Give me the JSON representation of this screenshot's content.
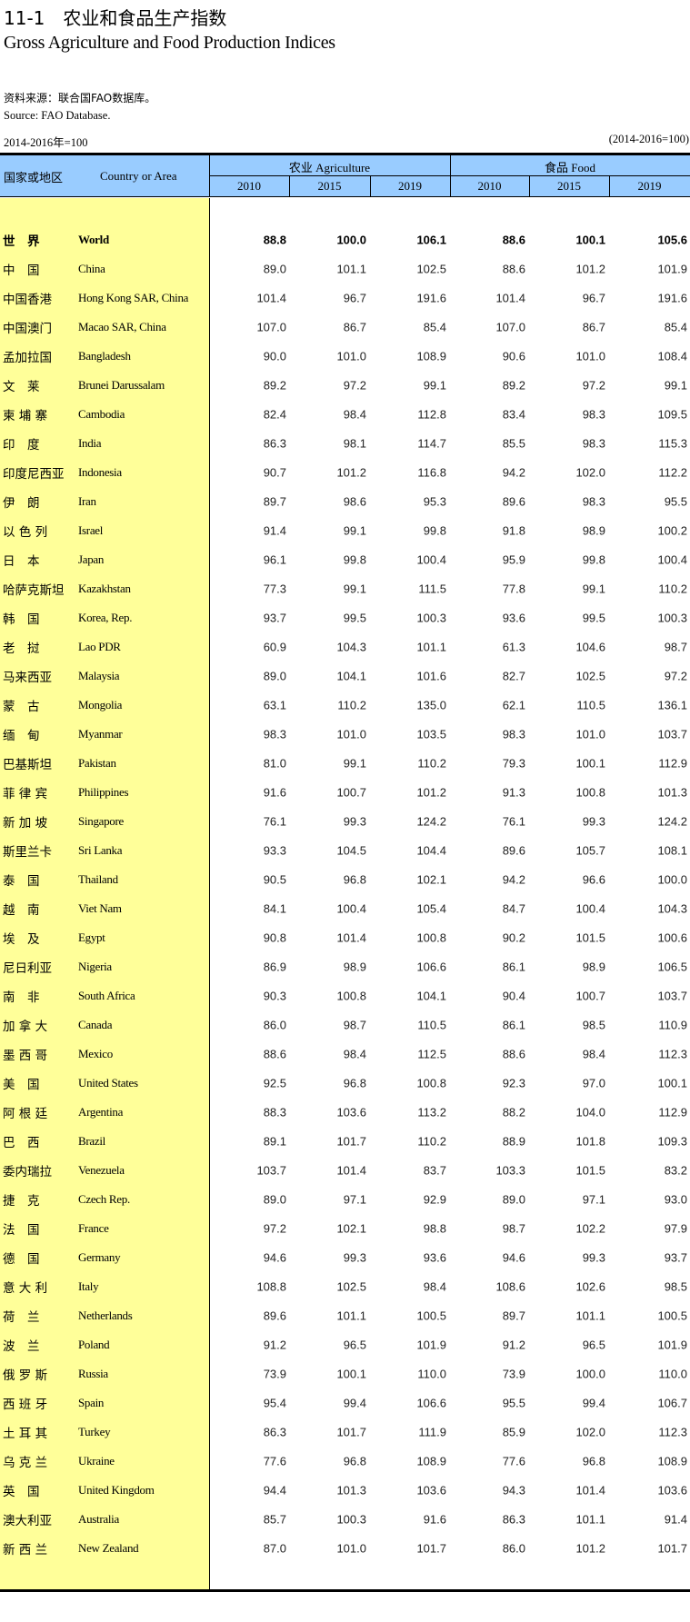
{
  "title": {
    "cn": "11-1　农业和食品生产指数",
    "en": "Gross Agriculture and Food Production Indices"
  },
  "source": {
    "cn": "资料来源：联合国FAO数据库。",
    "en": "Source: FAO Database."
  },
  "base": {
    "cn": "2014-2016年=100",
    "en": "(2014-2016=100)"
  },
  "header": {
    "country_cn": "国家或地区",
    "country_en": "Country or Area",
    "agriculture": "农业  Agriculture",
    "food": "食品  Food",
    "years": [
      "2010",
      "2015",
      "2019",
      "2010",
      "2015",
      "2019"
    ]
  },
  "colors": {
    "header_bg": "#99ccff",
    "name_column_bg": "#ffff99"
  },
  "rows": [
    {
      "cn": "世　界",
      "en": "World",
      "values": [
        "88.8",
        "100.0",
        "106.1",
        "88.6",
        "100.1",
        "105.6"
      ],
      "bold": true
    },
    {
      "cn": "中　国",
      "en": "China",
      "values": [
        "89.0",
        "101.1",
        "102.5",
        "88.6",
        "101.2",
        "101.9"
      ]
    },
    {
      "cn": "中国香港",
      "en": "Hong Kong SAR, China",
      "values": [
        "101.4",
        "96.7",
        "191.6",
        "101.4",
        "96.7",
        "191.6"
      ]
    },
    {
      "cn": "中国澳门",
      "en": "Macao SAR, China",
      "values": [
        "107.0",
        "86.7",
        "85.4",
        "107.0",
        "86.7",
        "85.4"
      ]
    },
    {
      "cn": "孟加拉国",
      "en": "Bangladesh",
      "values": [
        "90.0",
        "101.0",
        "108.9",
        "90.6",
        "101.0",
        "108.4"
      ]
    },
    {
      "cn": "文　莱",
      "en": "Brunei Darussalam",
      "values": [
        "89.2",
        "97.2",
        "99.1",
        "89.2",
        "97.2",
        "99.1"
      ]
    },
    {
      "cn": "柬 埔 寨",
      "en": "Cambodia",
      "values": [
        "82.4",
        "98.4",
        "112.8",
        "83.4",
        "98.3",
        "109.5"
      ]
    },
    {
      "cn": "印　度",
      "en": "India",
      "values": [
        "86.3",
        "98.1",
        "114.7",
        "85.5",
        "98.3",
        "115.3"
      ]
    },
    {
      "cn": "印度尼西亚",
      "en": "Indonesia",
      "values": [
        "90.7",
        "101.2",
        "116.8",
        "94.2",
        "102.0",
        "112.2"
      ]
    },
    {
      "cn": "伊　朗",
      "en": "Iran",
      "values": [
        "89.7",
        "98.6",
        "95.3",
        "89.6",
        "98.3",
        "95.5"
      ]
    },
    {
      "cn": "以 色 列",
      "en": "Israel",
      "values": [
        "91.4",
        "99.1",
        "99.8",
        "91.8",
        "98.9",
        "100.2"
      ]
    },
    {
      "cn": "日　本",
      "en": "Japan",
      "values": [
        "96.1",
        "99.8",
        "100.4",
        "95.9",
        "99.8",
        "100.4"
      ]
    },
    {
      "cn": "哈萨克斯坦",
      "en": "Kazakhstan",
      "values": [
        "77.3",
        "99.1",
        "111.5",
        "77.8",
        "99.1",
        "110.2"
      ]
    },
    {
      "cn": "韩　国",
      "en": "Korea, Rep.",
      "values": [
        "93.7",
        "99.5",
        "100.3",
        "93.6",
        "99.5",
        "100.3"
      ]
    },
    {
      "cn": "老　挝",
      "en": "Lao PDR",
      "values": [
        "60.9",
        "104.3",
        "101.1",
        "61.3",
        "104.6",
        "98.7"
      ]
    },
    {
      "cn": "马来西亚",
      "en": "Malaysia",
      "values": [
        "89.0",
        "104.1",
        "101.6",
        "82.7",
        "102.5",
        "97.2"
      ]
    },
    {
      "cn": "蒙　古",
      "en": "Mongolia",
      "values": [
        "63.1",
        "110.2",
        "135.0",
        "62.1",
        "110.5",
        "136.1"
      ]
    },
    {
      "cn": "缅　甸",
      "en": "Myanmar",
      "values": [
        "98.3",
        "101.0",
        "103.5",
        "98.3",
        "101.0",
        "103.7"
      ]
    },
    {
      "cn": "巴基斯坦",
      "en": "Pakistan",
      "values": [
        "81.0",
        "99.1",
        "110.2",
        "79.3",
        "100.1",
        "112.9"
      ]
    },
    {
      "cn": "菲 律 宾",
      "en": "Philippines",
      "values": [
        "91.6",
        "100.7",
        "101.2",
        "91.3",
        "100.8",
        "101.3"
      ]
    },
    {
      "cn": "新 加 坡",
      "en": "Singapore",
      "values": [
        "76.1",
        "99.3",
        "124.2",
        "76.1",
        "99.3",
        "124.2"
      ]
    },
    {
      "cn": "斯里兰卡",
      "en": "Sri Lanka",
      "values": [
        "93.3",
        "104.5",
        "104.4",
        "89.6",
        "105.7",
        "108.1"
      ]
    },
    {
      "cn": "泰　国",
      "en": "Thailand",
      "values": [
        "90.5",
        "96.8",
        "102.1",
        "94.2",
        "96.6",
        "100.0"
      ]
    },
    {
      "cn": "越　南",
      "en": "Viet Nam",
      "values": [
        "84.1",
        "100.4",
        "105.4",
        "84.7",
        "100.4",
        "104.3"
      ]
    },
    {
      "cn": "埃　及",
      "en": "Egypt",
      "values": [
        "90.8",
        "101.4",
        "100.8",
        "90.2",
        "101.5",
        "100.6"
      ]
    },
    {
      "cn": "尼日利亚",
      "en": "Nigeria",
      "values": [
        "86.9",
        "98.9",
        "106.6",
        "86.1",
        "98.9",
        "106.5"
      ]
    },
    {
      "cn": "南　非",
      "en": "South Africa",
      "values": [
        "90.3",
        "100.8",
        "104.1",
        "90.4",
        "100.7",
        "103.7"
      ]
    },
    {
      "cn": "加 拿 大",
      "en": "Canada",
      "values": [
        "86.0",
        "98.7",
        "110.5",
        "86.1",
        "98.5",
        "110.9"
      ]
    },
    {
      "cn": "墨 西 哥",
      "en": "Mexico",
      "values": [
        "88.6",
        "98.4",
        "112.5",
        "88.6",
        "98.4",
        "112.3"
      ]
    },
    {
      "cn": "美　国",
      "en": "United States",
      "values": [
        "92.5",
        "96.8",
        "100.8",
        "92.3",
        "97.0",
        "100.1"
      ]
    },
    {
      "cn": "阿 根 廷",
      "en": "Argentina",
      "values": [
        "88.3",
        "103.6",
        "113.2",
        "88.2",
        "104.0",
        "112.9"
      ]
    },
    {
      "cn": "巴　西",
      "en": "Brazil",
      "values": [
        "89.1",
        "101.7",
        "110.2",
        "88.9",
        "101.8",
        "109.3"
      ]
    },
    {
      "cn": "委内瑞拉",
      "en": "Venezuela",
      "values": [
        "103.7",
        "101.4",
        "83.7",
        "103.3",
        "101.5",
        "83.2"
      ]
    },
    {
      "cn": "捷　克",
      "en": "Czech Rep.",
      "values": [
        "89.0",
        "97.1",
        "92.9",
        "89.0",
        "97.1",
        "93.0"
      ]
    },
    {
      "cn": "法　国",
      "en": "France",
      "values": [
        "97.2",
        "102.1",
        "98.8",
        "98.7",
        "102.2",
        "97.9"
      ]
    },
    {
      "cn": "德　国",
      "en": "Germany",
      "values": [
        "94.6",
        "99.3",
        "93.6",
        "94.6",
        "99.3",
        "93.7"
      ]
    },
    {
      "cn": "意 大 利",
      "en": "Italy",
      "values": [
        "108.8",
        "102.5",
        "98.4",
        "108.6",
        "102.6",
        "98.5"
      ]
    },
    {
      "cn": "荷　兰",
      "en": "Netherlands",
      "values": [
        "89.6",
        "101.1",
        "100.5",
        "89.7",
        "101.1",
        "100.5"
      ]
    },
    {
      "cn": "波　兰",
      "en": "Poland",
      "values": [
        "91.2",
        "96.5",
        "101.9",
        "91.2",
        "96.5",
        "101.9"
      ]
    },
    {
      "cn": "俄 罗 斯",
      "en": "Russia",
      "values": [
        "73.9",
        "100.1",
        "110.0",
        "73.9",
        "100.0",
        "110.0"
      ]
    },
    {
      "cn": "西 班 牙",
      "en": "Spain",
      "values": [
        "95.4",
        "99.4",
        "106.6",
        "95.5",
        "99.4",
        "106.7"
      ]
    },
    {
      "cn": "土 耳 其",
      "en": "Turkey",
      "values": [
        "86.3",
        "101.7",
        "111.9",
        "85.9",
        "102.0",
        "112.3"
      ]
    },
    {
      "cn": "乌 克 兰",
      "en": "Ukraine",
      "values": [
        "77.6",
        "96.8",
        "108.9",
        "77.6",
        "96.8",
        "108.9"
      ]
    },
    {
      "cn": "英　国",
      "en": "United Kingdom",
      "values": [
        "94.4",
        "101.3",
        "103.6",
        "94.3",
        "101.4",
        "103.6"
      ]
    },
    {
      "cn": "澳大利亚",
      "en": "Australia",
      "values": [
        "85.7",
        "100.3",
        "91.6",
        "86.3",
        "101.1",
        "91.4"
      ]
    },
    {
      "cn": "新 西 兰",
      "en": "New Zealand",
      "values": [
        "87.0",
        "101.0",
        "101.7",
        "86.0",
        "101.2",
        "101.7"
      ]
    }
  ]
}
